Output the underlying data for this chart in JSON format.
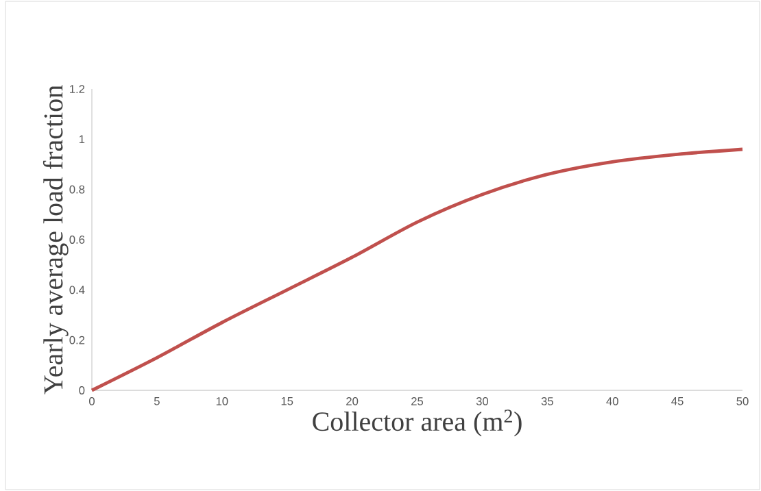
{
  "chart_data": {
    "type": "line",
    "xlabel": "Collector area (m$^{2}$)",
    "ylabel": "Yearly average load fraction",
    "x": [
      0,
      5,
      10,
      15,
      20,
      25,
      30,
      35,
      40,
      45,
      50
    ],
    "series": [
      {
        "color": "#c0504d",
        "values": [
          0,
          0.13,
          0.27,
          0.4,
          0.53,
          0.67,
          0.78,
          0.86,
          0.91,
          0.94,
          0.96
        ]
      }
    ],
    "xlim": [
      0,
      50
    ],
    "ylim": [
      0,
      1.2
    ],
    "xticks": [
      0,
      5,
      10,
      15,
      20,
      25,
      30,
      35,
      40,
      45,
      50
    ],
    "yticks": [
      0,
      0.2,
      0.4,
      0.6,
      0.8,
      1,
      1.2
    ],
    "marker": "none",
    "line_style": "solid"
  }
}
